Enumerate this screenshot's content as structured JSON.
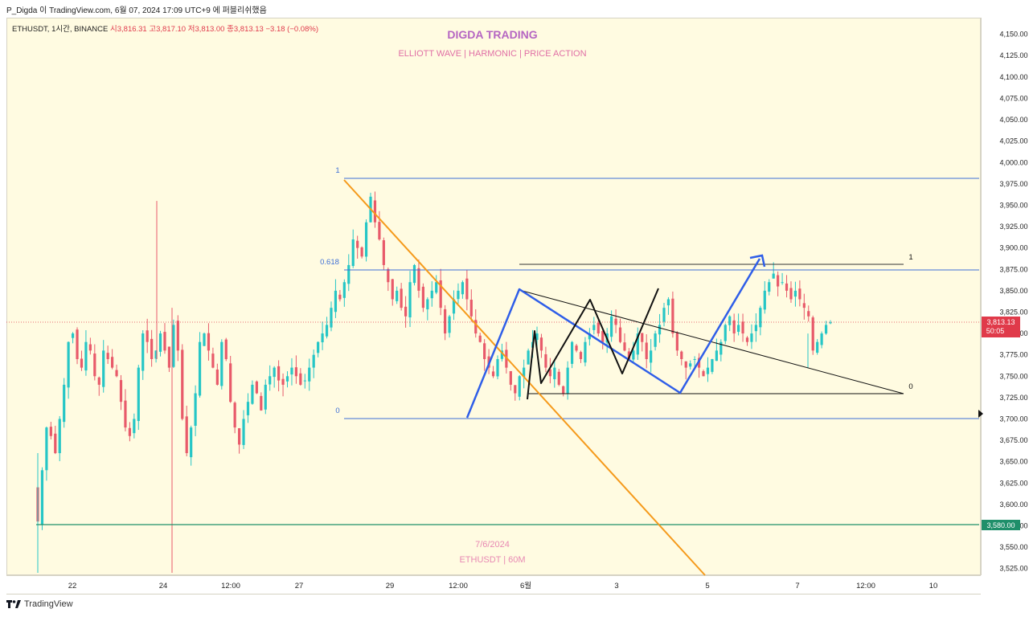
{
  "attribution": "P_Digda 이 TradingView.com, 6월 07, 2024 17:09 UTC+9 에 퍼블리쉬했음",
  "symbol_line": {
    "symbol": "ETHUSDT, 1시간, BINANCE",
    "open": "시3,816.31",
    "high": "고3,817.10",
    "low": "저3,813.00",
    "close": "종3,813.13",
    "change": "−3.18 (−0.08%)"
  },
  "title": "DIGDA TRADING",
  "subtitle": "ELLIOTT WAVE   |   HARMONIC   |   PRICE ACTION",
  "watermark": {
    "date": "7/6/2024",
    "symbol": "ETHUSDT | 60M"
  },
  "footer": {
    "brand": "TradingView",
    "logo": "tradingview-logo-icon"
  },
  "colors": {
    "background": "#fffbe1",
    "up_candle": "#26c6c6",
    "down_candle": "#e85a6a",
    "fib_line": "#3d6fd6",
    "orange_trendline": "#f59a1b",
    "blue_pattern": "#2f5ee8",
    "black_pattern": "#111111",
    "support_line": "#1f8f6a",
    "current_price_tag": "#e03a4a"
  },
  "chart_data": {
    "type": "candlestick",
    "symbol": "ETHUSDT",
    "interval": "1시간",
    "exchange": "BINANCE",
    "ylim": [
      3520,
      4160
    ],
    "y_ticks": [
      "4,150.00",
      "4,125.00",
      "4,100.00",
      "4,075.00",
      "4,050.00",
      "4,025.00",
      "4,000.00",
      "3,975.00",
      "3,950.00",
      "3,925.00",
      "3,900.00",
      "3,875.00",
      "3,850.00",
      "3,825.00",
      "3,800.00",
      "3,775.00",
      "3,750.00",
      "3,725.00",
      "3,700.00",
      "3,675.00",
      "3,650.00",
      "3,625.00",
      "3,600.00",
      "3,575.00",
      "3,550.00",
      "3,525.00"
    ],
    "x_ticks": [
      "22",
      "24",
      "12:00",
      "27",
      "29",
      "12:00",
      "6월",
      "3",
      "5",
      "7",
      "12:00",
      "10"
    ],
    "current_price": {
      "value": "3,813.13",
      "countdown": "50:05"
    },
    "support_level": {
      "value": "3,580.00"
    },
    "fib_levels": [
      {
        "label": "1",
        "price": 3975
      },
      {
        "label": "0.618",
        "price": 3871
      },
      {
        "label": "0",
        "price": 3700
      }
    ],
    "range_box_levels": [
      {
        "label": "1",
        "price": 3882
      },
      {
        "label": "0",
        "price": 3729
      }
    ],
    "closes": [
      3580,
      3640,
      3690,
      3680,
      3660,
      3700,
      3740,
      3790,
      3800,
      3770,
      3760,
      3790,
      3780,
      3750,
      3740,
      3780,
      3770,
      3760,
      3750,
      3720,
      3690,
      3680,
      3700,
      3760,
      3800,
      3790,
      3770,
      3780,
      3800,
      3780,
      3760,
      3810,
      3780,
      3700,
      3660,
      3690,
      3730,
      3790,
      3800,
      3780,
      3760,
      3740,
      3790,
      3770,
      3720,
      3690,
      3670,
      3700,
      3720,
      3740,
      3730,
      3710,
      3740,
      3750,
      3760,
      3745,
      3740,
      3750,
      3760,
      3750,
      3740,
      3745,
      3760,
      3775,
      3790,
      3800,
      3810,
      3830,
      3850,
      3840,
      3860,
      3880,
      3910,
      3900,
      3890,
      3930,
      3960,
      3930,
      3910,
      3880,
      3860,
      3840,
      3850,
      3830,
      3820,
      3860,
      3880,
      3850,
      3830,
      3840,
      3850,
      3860,
      3830,
      3800,
      3820,
      3840,
      3850,
      3860,
      3840,
      3820,
      3800,
      3790,
      3770,
      3760,
      3750,
      3770,
      3780,
      3760,
      3740,
      3730,
      3750,
      3760,
      3780,
      3790,
      3800,
      3780,
      3760,
      3750,
      3760,
      3740,
      3730,
      3760,
      3790,
      3780,
      3770,
      3790,
      3800,
      3810,
      3800,
      3790,
      3800,
      3820,
      3810,
      3790,
      3780,
      3770,
      3780,
      3800,
      3790,
      3770,
      3780,
      3800,
      3810,
      3830,
      3840,
      3800,
      3780,
      3770,
      3760,
      3765,
      3770,
      3760,
      3750,
      3760,
      3770,
      3780,
      3790,
      3810,
      3820,
      3800,
      3810,
      3800,
      3790,
      3800,
      3810,
      3830,
      3850,
      3860,
      3870,
      3855,
      3860,
      3850,
      3840,
      3850,
      3840,
      3830,
      3820,
      3780,
      3790,
      3800,
      3810,
      3813
    ]
  }
}
